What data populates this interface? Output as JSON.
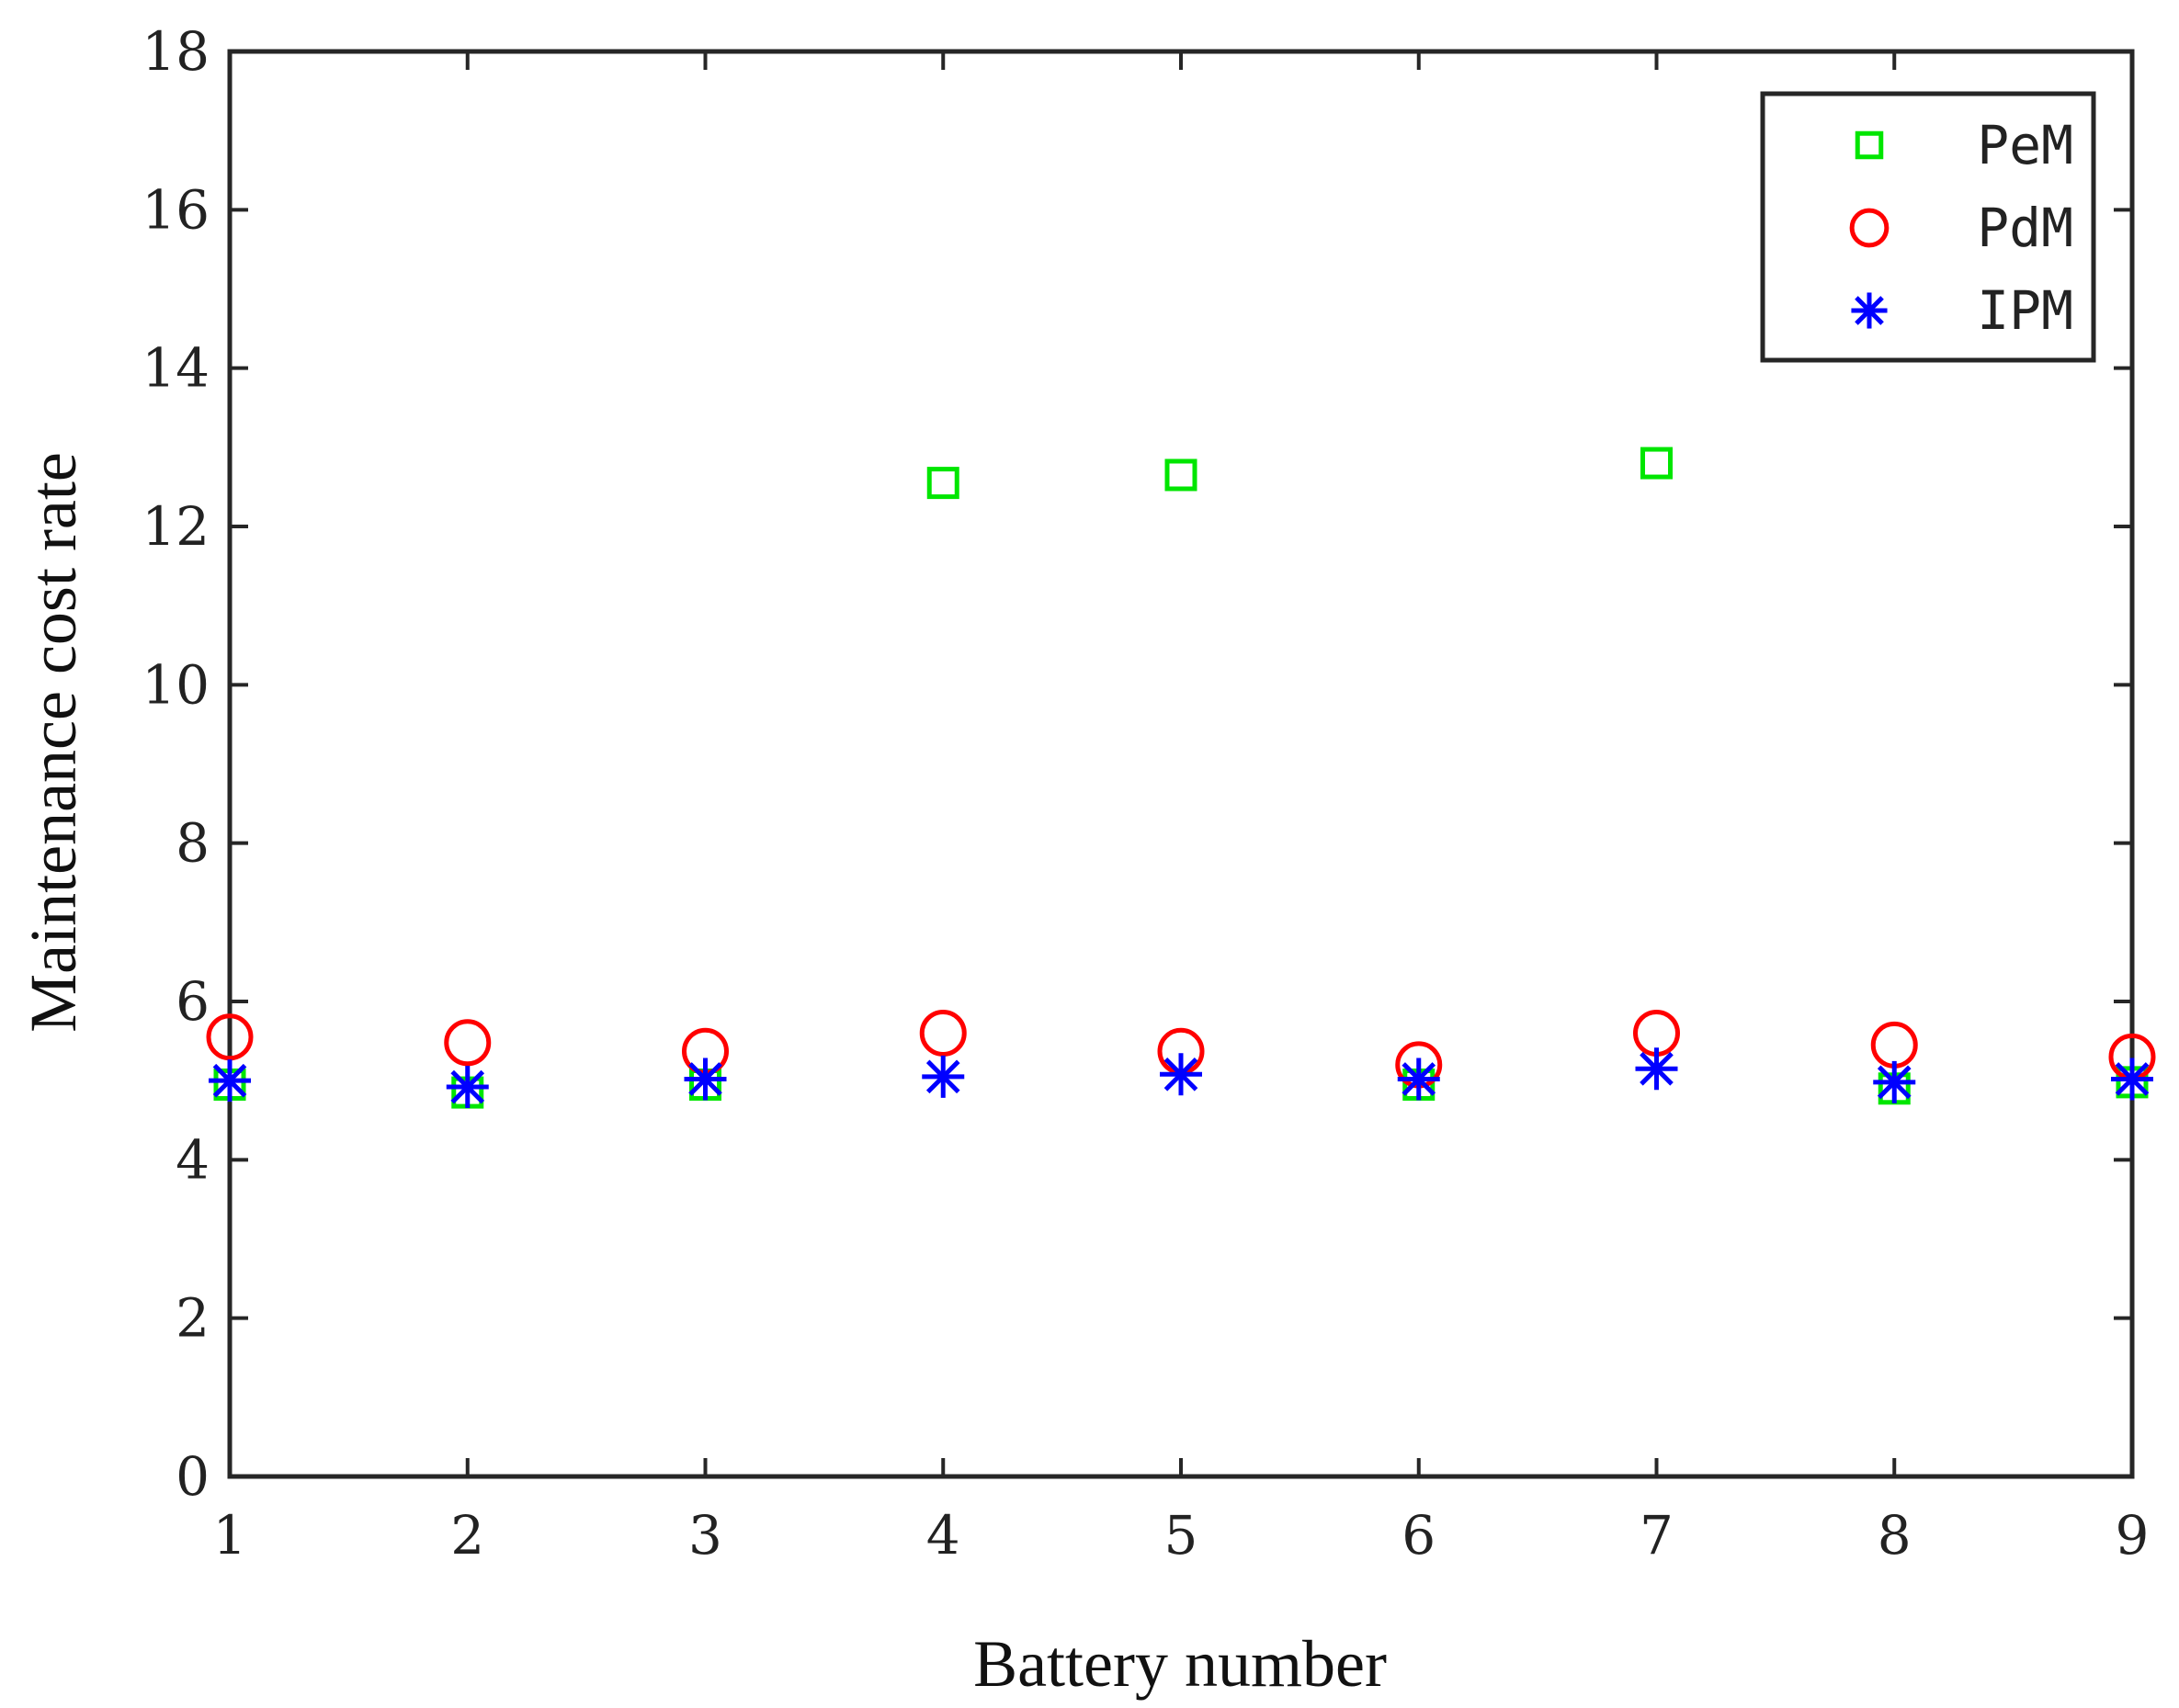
{
  "chart_data": {
    "type": "scatter",
    "title": "",
    "xlabel": "Battery number",
    "ylabel": "Maintenance cost rate",
    "xlim": [
      1,
      9
    ],
    "ylim": [
      0,
      18
    ],
    "x": [
      1,
      2,
      3,
      4,
      5,
      6,
      7,
      8,
      9
    ],
    "xticks": [
      "1",
      "2",
      "3",
      "4",
      "5",
      "6",
      "7",
      "8",
      "9"
    ],
    "yticks": [
      "0",
      "2",
      "4",
      "6",
      "8",
      "10",
      "12",
      "14",
      "16",
      "18"
    ],
    "grid": false,
    "legend_position": "top-right",
    "series": [
      {
        "name": "PeM",
        "marker": "square",
        "color": "#00e600",
        "values": [
          4.95,
          4.85,
          4.95,
          12.55,
          12.65,
          4.95,
          12.8,
          4.9,
          4.98
        ]
      },
      {
        "name": "PdM",
        "marker": "circle",
        "color": "#ff0000",
        "values": [
          5.55,
          5.48,
          5.37,
          5.6,
          5.37,
          5.2,
          5.6,
          5.45,
          5.3
        ]
      },
      {
        "name": "IPM",
        "marker": "asterisk",
        "color": "#0000ff",
        "values": [
          5.0,
          4.92,
          5.02,
          5.05,
          5.08,
          5.02,
          5.15,
          4.98,
          5.02
        ]
      }
    ]
  }
}
